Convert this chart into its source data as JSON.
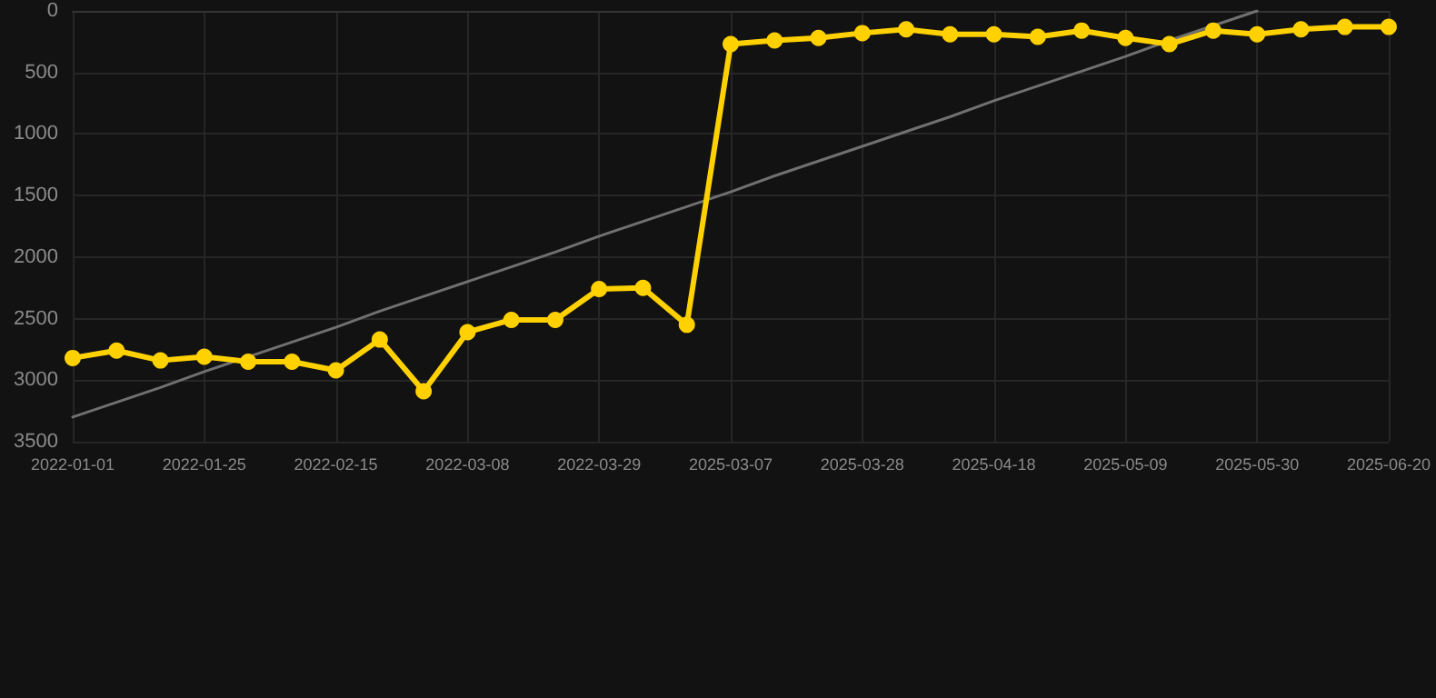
{
  "chart_data": {
    "type": "line",
    "categories": [
      "2022-01-01",
      null,
      null,
      "2022-01-25",
      null,
      null,
      "2022-02-15",
      null,
      null,
      "2022-03-08",
      null,
      null,
      "2022-03-29",
      null,
      null,
      "2025-03-07",
      null,
      null,
      "2025-03-28",
      null,
      null,
      "2025-04-18",
      null,
      null,
      "2025-05-09",
      null,
      null,
      "2025-05-30",
      null,
      null,
      "2025-06-20"
    ],
    "series": [
      {
        "color": "#ffd100",
        "values": [
          2820,
          2760,
          2840,
          2810,
          2850,
          2850,
          2920,
          2670,
          3090,
          2610,
          2510,
          2510,
          2260,
          2250,
          2550,
          270,
          240,
          220,
          180,
          150,
          190,
          190,
          210,
          160,
          220,
          270,
          160,
          190,
          150,
          130,
          130
        ],
        "marker": "circle",
        "line_style": "solid"
      },
      {
        "type": "line",
        "color": "#707070",
        "values": [
          3300,
          3180,
          3060,
          2930,
          2810,
          2690,
          2570,
          2440,
          2320,
          2200,
          2080,
          1960,
          1830,
          1710,
          1590,
          1470,
          1340,
          1220,
          1100,
          980,
          860,
          730,
          610,
          490,
          370,
          240,
          120,
          0,
          null,
          null,
          null
        ],
        "marker": "none",
        "line_style": "solid"
      }
    ],
    "ylim": [
      3500,
      0
    ],
    "yticks": [
      0,
      500,
      1000,
      1500,
      2000,
      2500,
      3000,
      3500
    ],
    "grid": true
  }
}
